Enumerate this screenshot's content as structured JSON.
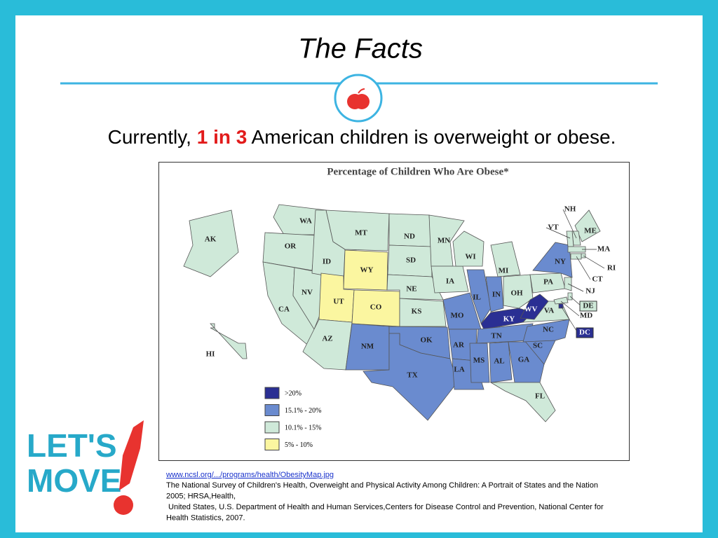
{
  "title": "The Facts",
  "headline": {
    "before": "Currently,",
    "highlight": "1 in 3",
    "after": "American children is overweight or obese."
  },
  "map": {
    "title": "Percentage of Children Who Are Obese*",
    "legend": [
      {
        "label": ">20%",
        "color": "#2a2f93"
      },
      {
        "label": "15.1% - 20%",
        "color": "#6a8bcf"
      },
      {
        "label": "10.1% - 15%",
        "color": "#cfe9d9"
      },
      {
        "label": "5% - 10%",
        "color": "#fbf6a0"
      }
    ],
    "states": [
      {
        "label": "WA",
        "class": 2
      },
      {
        "label": "OR",
        "class": 2
      },
      {
        "label": "CA",
        "class": 2
      },
      {
        "label": "NV",
        "class": 2
      },
      {
        "label": "ID",
        "class": 2
      },
      {
        "label": "MT",
        "class": 2
      },
      {
        "label": "WY",
        "class": 3
      },
      {
        "label": "UT",
        "class": 3
      },
      {
        "label": "CO",
        "class": 3
      },
      {
        "label": "AZ",
        "class": 2
      },
      {
        "label": "NM",
        "class": 1
      },
      {
        "label": "ND",
        "class": 2
      },
      {
        "label": "SD",
        "class": 2
      },
      {
        "label": "NE",
        "class": 2
      },
      {
        "label": "KS",
        "class": 2
      },
      {
        "label": "OK",
        "class": 1
      },
      {
        "label": "TX",
        "class": 1
      },
      {
        "label": "MN",
        "class": 2
      },
      {
        "label": "IA",
        "class": 2
      },
      {
        "label": "MO",
        "class": 1
      },
      {
        "label": "AR",
        "class": 1
      },
      {
        "label": "LA",
        "class": 1
      },
      {
        "label": "WI",
        "class": 2
      },
      {
        "label": "IL",
        "class": 1
      },
      {
        "label": "IN",
        "class": 1
      },
      {
        "label": "MI",
        "class": 2
      },
      {
        "label": "OH",
        "class": 2
      },
      {
        "label": "KY",
        "class": 0
      },
      {
        "label": "TN",
        "class": 1
      },
      {
        "label": "MS",
        "class": 1
      },
      {
        "label": "AL",
        "class": 1
      },
      {
        "label": "GA",
        "class": 1
      },
      {
        "label": "FL",
        "class": 2
      },
      {
        "label": "SC",
        "class": 1
      },
      {
        "label": "NC",
        "class": 1
      },
      {
        "label": "VA",
        "class": 2
      },
      {
        "label": "WV",
        "class": 0
      },
      {
        "label": "PA",
        "class": 2
      },
      {
        "label": "NY",
        "class": 1
      },
      {
        "label": "ME",
        "class": 2
      },
      {
        "label": "NH",
        "class": 2
      },
      {
        "label": "VT",
        "class": 2
      },
      {
        "label": "MA",
        "class": 2
      },
      {
        "label": "RI",
        "class": 2
      },
      {
        "label": "CT",
        "class": 2
      },
      {
        "label": "NJ",
        "class": 2
      },
      {
        "label": "DE",
        "class": 2
      },
      {
        "label": "MD",
        "class": 2
      },
      {
        "label": "DC",
        "class": 0
      },
      {
        "label": "AK",
        "class": 2
      },
      {
        "label": "HI",
        "class": 2
      }
    ]
  },
  "logo": {
    "line1": "LET'S",
    "line2": "MOVE"
  },
  "source": {
    "link": "www.ncsl.org/.../programs/health/ObesityMap.jpg",
    "lines": [
      "The National Survey of Children's Health, Overweight and Physical Activity Among Children: A Portrait of States and the Nation",
      "2005; HRSA,Health,",
      " United States, U.S. Department of Health and Human Services,Centers for Disease Control and Prevention, National Center for",
      "Health Statistics, 2007."
    ]
  }
}
